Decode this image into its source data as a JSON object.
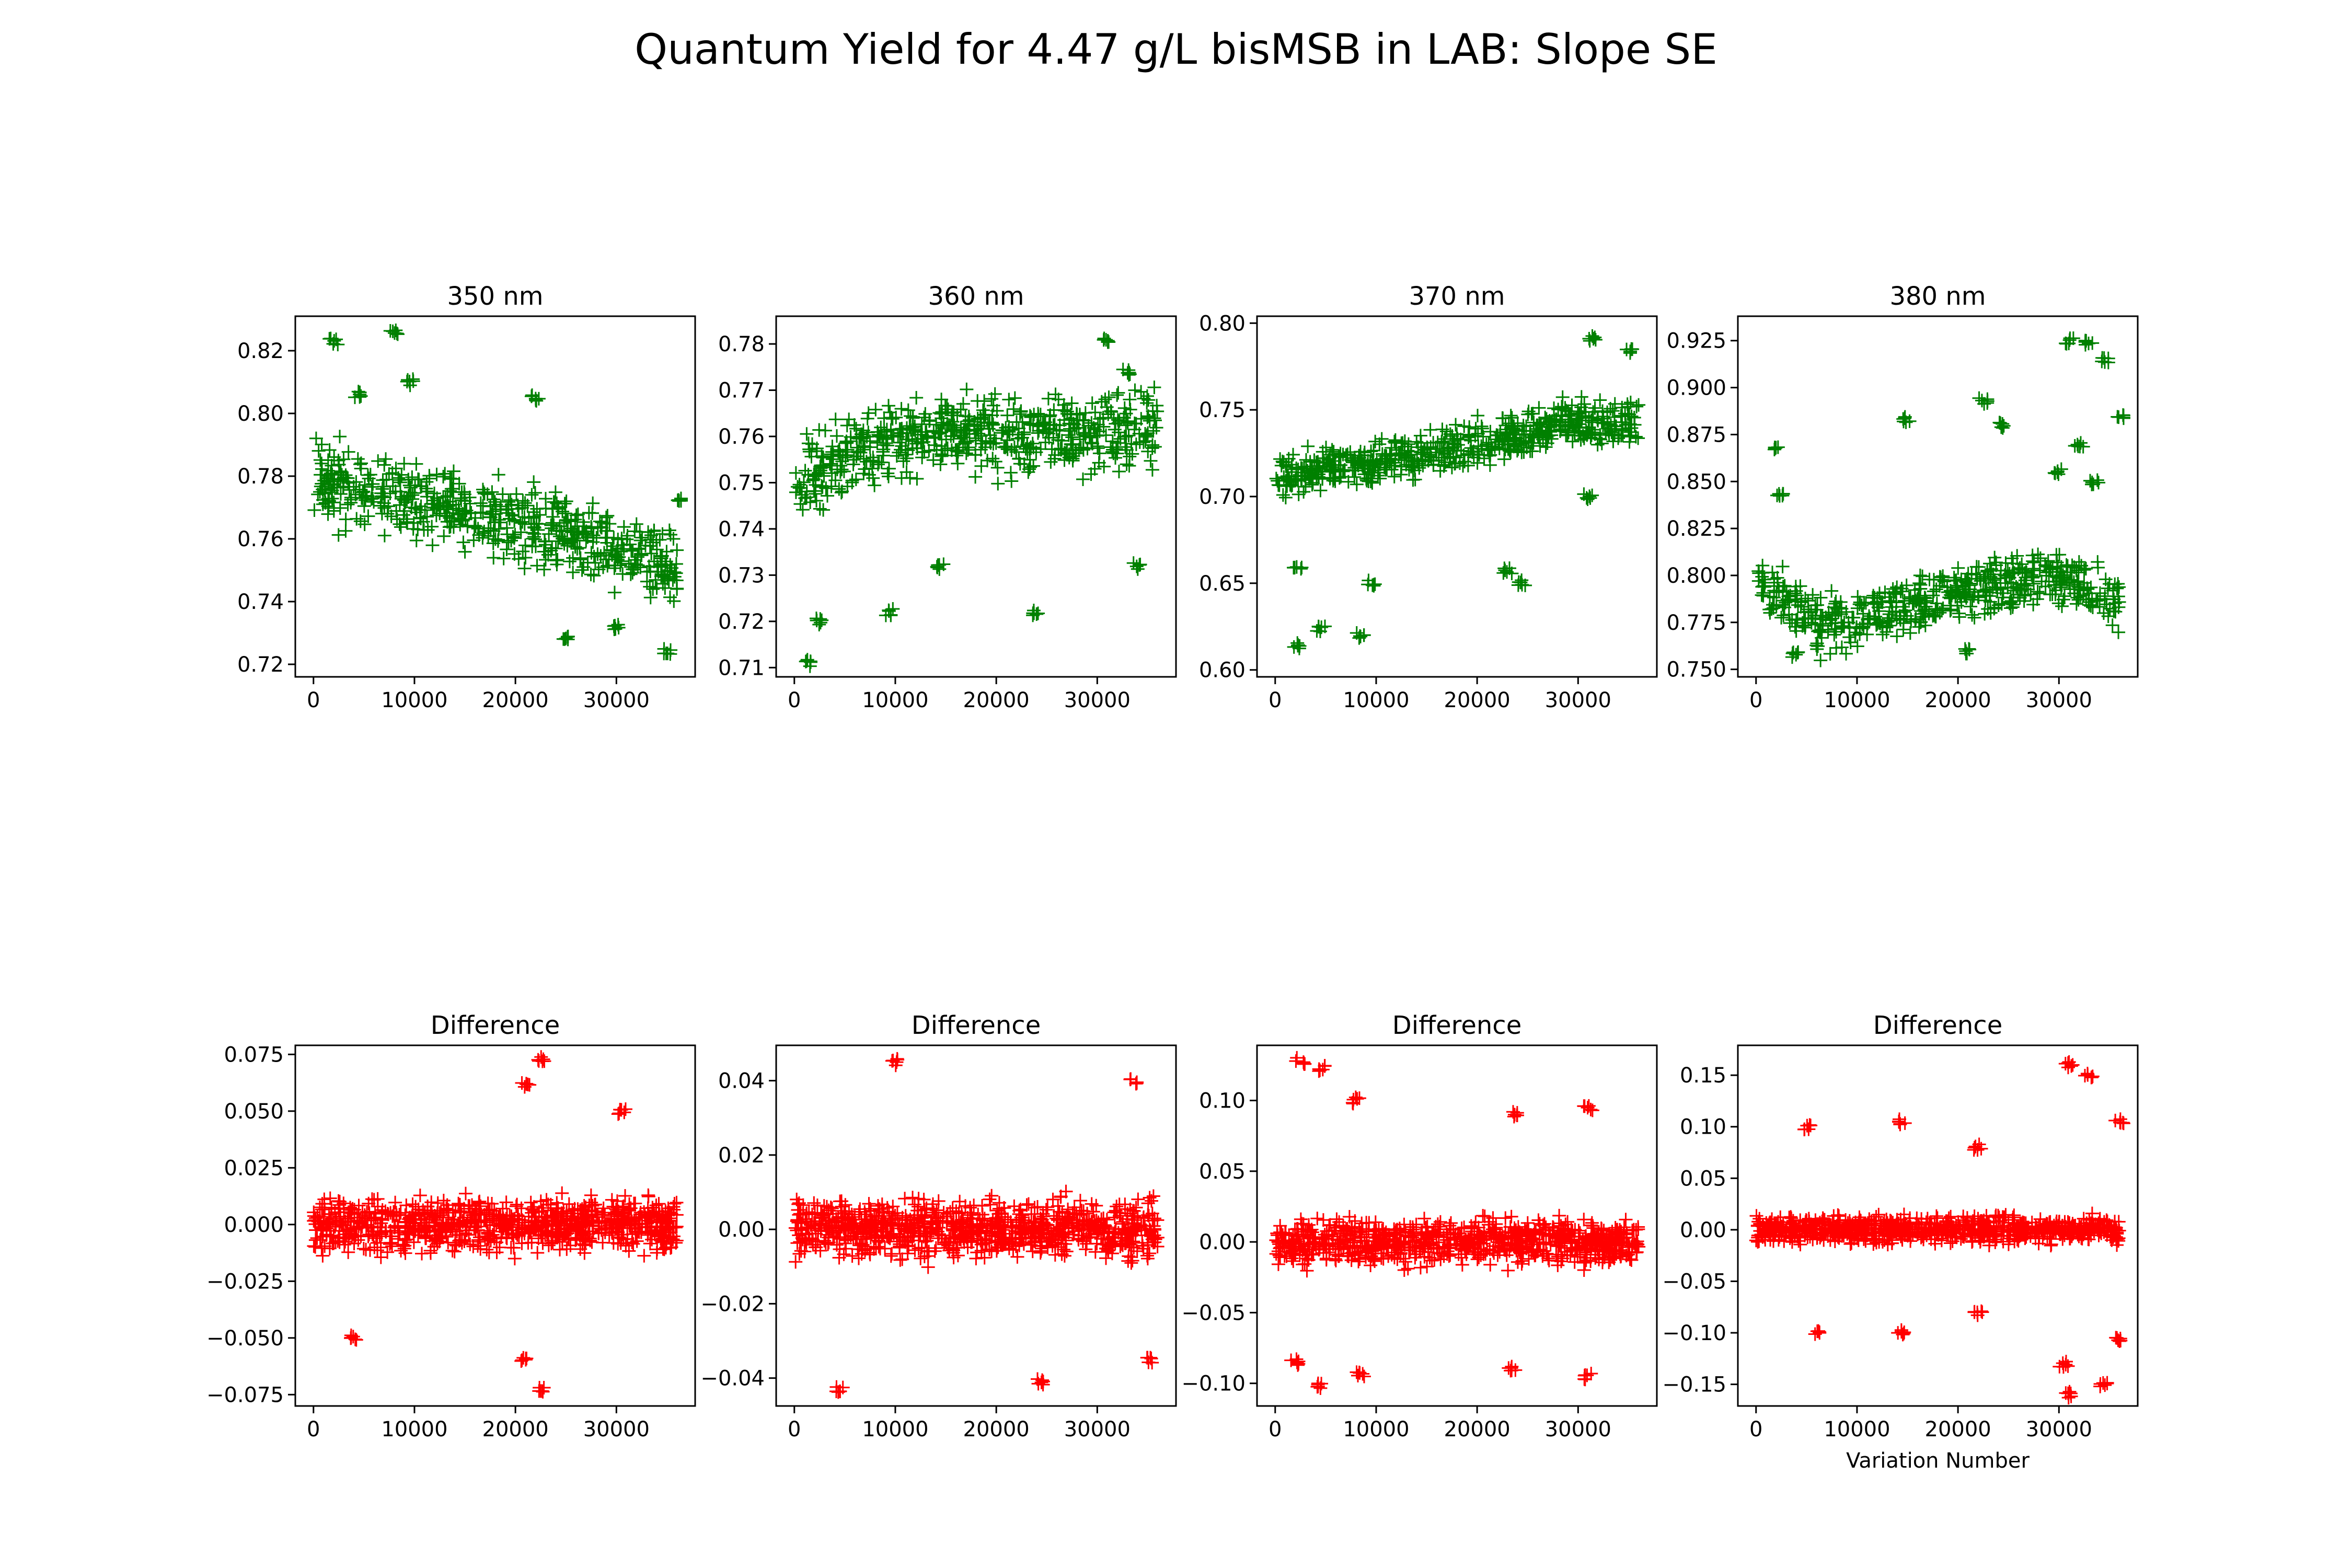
{
  "chart_data": {
    "type": "scatter",
    "title": "Quantum Yield for 4.47 g/L bisMSB in LAB: Slope SE",
    "marker": "+",
    "colors": {
      "top": "#008000",
      "bottom": "#ff0000"
    },
    "panels": [
      {
        "id": "350nm",
        "title": "350 nm",
        "xlabel": "",
        "color": "#008000",
        "xlim": [
          -1800,
          37800
        ],
        "ylim": [
          0.716,
          0.831
        ],
        "xticks": [
          0,
          10000,
          20000,
          30000
        ],
        "xtick_labels": [
          "0",
          "10000",
          "20000",
          "30000"
        ],
        "yticks": [
          0.72,
          0.74,
          0.76,
          0.78,
          0.8,
          0.82
        ],
        "ytick_labels": [
          "0.72",
          "0.74",
          "0.76",
          "0.78",
          "0.80",
          "0.82"
        ],
        "trend": [
          [
            0,
            0.778
          ],
          [
            10000,
            0.772
          ],
          [
            20000,
            0.765
          ],
          [
            30000,
            0.757
          ],
          [
            36000,
            0.75
          ]
        ],
        "spread": 0.017,
        "clusters": [
          [
            2000,
            0.823
          ],
          [
            4500,
            0.806
          ],
          [
            8000,
            0.826
          ],
          [
            9500,
            0.81
          ],
          [
            22000,
            0.805
          ],
          [
            36500,
            0.772
          ],
          [
            25000,
            0.728
          ],
          [
            35000,
            0.724
          ],
          [
            30000,
            0.732
          ]
        ],
        "n": 620,
        "seed": 11
      },
      {
        "id": "360nm",
        "title": "360 nm",
        "xlabel": "",
        "color": "#008000",
        "xlim": [
          -1800,
          37800
        ],
        "ylim": [
          0.708,
          0.786
        ],
        "xticks": [
          0,
          10000,
          20000,
          30000
        ],
        "xtick_labels": [
          "0",
          "10000",
          "20000",
          "30000"
        ],
        "yticks": [
          0.71,
          0.72,
          0.73,
          0.74,
          0.75,
          0.76,
          0.77,
          0.78
        ],
        "ytick_labels": [
          "0.71",
          "0.72",
          "0.73",
          "0.74",
          "0.75",
          "0.76",
          "0.77",
          "0.78"
        ],
        "trend": [
          [
            0,
            0.748
          ],
          [
            5000,
            0.757
          ],
          [
            15000,
            0.761
          ],
          [
            25000,
            0.76
          ],
          [
            36000,
            0.762
          ]
        ],
        "spread": 0.012,
        "clusters": [
          [
            1500,
            0.711
          ],
          [
            2500,
            0.72
          ],
          [
            9500,
            0.722
          ],
          [
            24000,
            0.722
          ],
          [
            14500,
            0.732
          ],
          [
            34000,
            0.732
          ],
          [
            31000,
            0.781
          ],
          [
            33000,
            0.774
          ]
        ],
        "n": 620,
        "seed": 23
      },
      {
        "id": "370nm",
        "title": "370 nm",
        "xlabel": "",
        "color": "#008000",
        "xlim": [
          -1800,
          37800
        ],
        "ylim": [
          0.596,
          0.804
        ],
        "xticks": [
          0,
          10000,
          20000,
          30000
        ],
        "xtick_labels": [
          "0",
          "10000",
          "20000",
          "30000"
        ],
        "yticks": [
          0.6,
          0.65,
          0.7,
          0.75,
          0.8
        ],
        "ytick_labels": [
          "0.60",
          "0.65",
          "0.70",
          "0.75",
          "0.80"
        ],
        "trend": [
          [
            0,
            0.712
          ],
          [
            10000,
            0.719
          ],
          [
            20000,
            0.73
          ],
          [
            30000,
            0.744
          ],
          [
            36000,
            0.742
          ]
        ],
        "spread": 0.018,
        "clusters": [
          [
            2000,
            0.614
          ],
          [
            2200,
            0.66
          ],
          [
            4500,
            0.624
          ],
          [
            8500,
            0.62
          ],
          [
            9500,
            0.65
          ],
          [
            23000,
            0.657
          ],
          [
            24500,
            0.65
          ],
          [
            31500,
            0.791
          ],
          [
            35000,
            0.784
          ],
          [
            31000,
            0.7
          ]
        ],
        "n": 620,
        "seed": 37
      },
      {
        "id": "380nm",
        "title": "380 nm",
        "xlabel": "",
        "color": "#008000",
        "xlim": [
          -1800,
          37800
        ],
        "ylim": [
          0.746,
          0.938
        ],
        "xticks": [
          0,
          10000,
          20000,
          30000
        ],
        "xtick_labels": [
          "0",
          "10000",
          "20000",
          "30000"
        ],
        "yticks": [
          0.75,
          0.775,
          0.8,
          0.825,
          0.85,
          0.875,
          0.9,
          0.925
        ],
        "ytick_labels": [
          "0.750",
          "0.775",
          "0.800",
          "0.825",
          "0.850",
          "0.875",
          "0.900",
          "0.925"
        ],
        "trend": [
          [
            0,
            0.8
          ],
          [
            6000,
            0.775
          ],
          [
            14000,
            0.78
          ],
          [
            22000,
            0.795
          ],
          [
            30000,
            0.8
          ],
          [
            36000,
            0.785
          ]
        ],
        "spread": 0.022,
        "clusters": [
          [
            2000,
            0.868
          ],
          [
            2500,
            0.843
          ],
          [
            15000,
            0.883
          ],
          [
            22500,
            0.893
          ],
          [
            24500,
            0.88
          ],
          [
            31000,
            0.925
          ],
          [
            33000,
            0.924
          ],
          [
            34500,
            0.915
          ],
          [
            36000,
            0.885
          ],
          [
            30000,
            0.855
          ],
          [
            32000,
            0.87
          ],
          [
            33500,
            0.85
          ],
          [
            4000,
            0.758
          ],
          [
            21000,
            0.76
          ]
        ],
        "n": 560,
        "seed": 53
      },
      {
        "id": "diff-350",
        "title": "Difference",
        "xlabel": "",
        "color": "#ff0000",
        "xlim": [
          -1800,
          37800
        ],
        "ylim": [
          -0.08,
          0.079
        ],
        "xticks": [
          0,
          10000,
          20000,
          30000
        ],
        "xtick_labels": [
          "0",
          "10000",
          "20000",
          "30000"
        ],
        "yticks": [
          -0.075,
          -0.05,
          -0.025,
          0.0,
          0.025,
          0.05,
          0.075
        ],
        "ytick_labels": [
          "−0.075",
          "−0.050",
          "−0.025",
          "0.000",
          "0.025",
          "0.050",
          "0.075"
        ],
        "trend": [
          [
            0,
            0.0
          ],
          [
            36000,
            0.0
          ]
        ],
        "spread": 0.016,
        "clusters": [
          [
            22500,
            0.073
          ],
          [
            22500,
            -0.073
          ],
          [
            21000,
            0.062
          ],
          [
            21000,
            -0.06
          ],
          [
            30500,
            0.05
          ],
          [
            4000,
            -0.05
          ]
        ],
        "n": 900,
        "seed": 71
      },
      {
        "id": "diff-360",
        "title": "Difference",
        "xlabel": "",
        "color": "#ff0000",
        "xlim": [
          -1800,
          37800
        ],
        "ylim": [
          -0.0475,
          0.0495
        ],
        "xticks": [
          0,
          10000,
          20000,
          30000
        ],
        "xtick_labels": [
          "0",
          "10000",
          "20000",
          "30000"
        ],
        "yticks": [
          -0.04,
          -0.02,
          0.0,
          0.02,
          0.04
        ],
        "ytick_labels": [
          "−0.04",
          "−0.02",
          "0.00",
          "0.02",
          "0.04"
        ],
        "trend": [
          [
            0,
            0.0
          ],
          [
            36000,
            0.0
          ]
        ],
        "spread": 0.011,
        "clusters": [
          [
            9800,
            0.045
          ],
          [
            4500,
            -0.043
          ],
          [
            33500,
            0.04
          ],
          [
            24500,
            -0.041
          ],
          [
            35000,
            -0.035
          ]
        ],
        "n": 950,
        "seed": 89
      },
      {
        "id": "diff-370",
        "title": "Difference",
        "xlabel": "",
        "color": "#ff0000",
        "xlim": [
          -1800,
          37800
        ],
        "ylim": [
          -0.116,
          0.139
        ],
        "xticks": [
          0,
          10000,
          20000,
          30000
        ],
        "xtick_labels": [
          "0",
          "10000",
          "20000",
          "30000"
        ],
        "yticks": [
          -0.1,
          -0.05,
          0.0,
          0.05,
          0.1
        ],
        "ytick_labels": [
          "−0.10",
          "−0.05",
          "0.00",
          "0.05",
          "0.10"
        ],
        "trend": [
          [
            0,
            0.0
          ],
          [
            36000,
            0.0
          ]
        ],
        "spread": 0.022,
        "clusters": [
          [
            2500,
            0.128
          ],
          [
            4500,
            0.123
          ],
          [
            8000,
            0.1
          ],
          [
            24000,
            0.09
          ],
          [
            23500,
            -0.09
          ],
          [
            31000,
            0.095
          ],
          [
            31000,
            -0.095
          ],
          [
            2000,
            -0.085
          ],
          [
            4500,
            -0.102
          ],
          [
            8500,
            -0.094
          ]
        ],
        "n": 880,
        "seed": 97
      },
      {
        "id": "diff-380",
        "title": "Difference",
        "xlabel": "Variation Number",
        "color": "#ff0000",
        "xlim": [
          -1800,
          37800
        ],
        "ylim": [
          -0.171,
          0.179
        ],
        "xticks": [
          0,
          10000,
          20000,
          30000
        ],
        "xtick_labels": [
          "0",
          "10000",
          "20000",
          "30000"
        ],
        "yticks": [
          -0.15,
          -0.1,
          -0.05,
          0.0,
          0.05,
          0.1,
          0.15
        ],
        "ytick_labels": [
          "−0.15",
          "−0.10",
          "−0.05",
          "0.00",
          "0.05",
          "0.10",
          "0.15"
        ],
        "trend": [
          [
            0,
            0.0
          ],
          [
            36000,
            0.0
          ]
        ],
        "spread": 0.018,
        "clusters": [
          [
            31000,
            0.16
          ],
          [
            31000,
            -0.16
          ],
          [
            33000,
            0.15
          ],
          [
            34500,
            -0.15
          ],
          [
            36000,
            0.105
          ],
          [
            36000,
            -0.105
          ],
          [
            30500,
            -0.13
          ],
          [
            22000,
            0.08
          ],
          [
            22000,
            -0.08
          ],
          [
            5000,
            0.1
          ],
          [
            6000,
            -0.1
          ],
          [
            14500,
            0.105
          ],
          [
            14500,
            -0.1
          ]
        ],
        "n": 820,
        "seed": 113
      }
    ]
  }
}
